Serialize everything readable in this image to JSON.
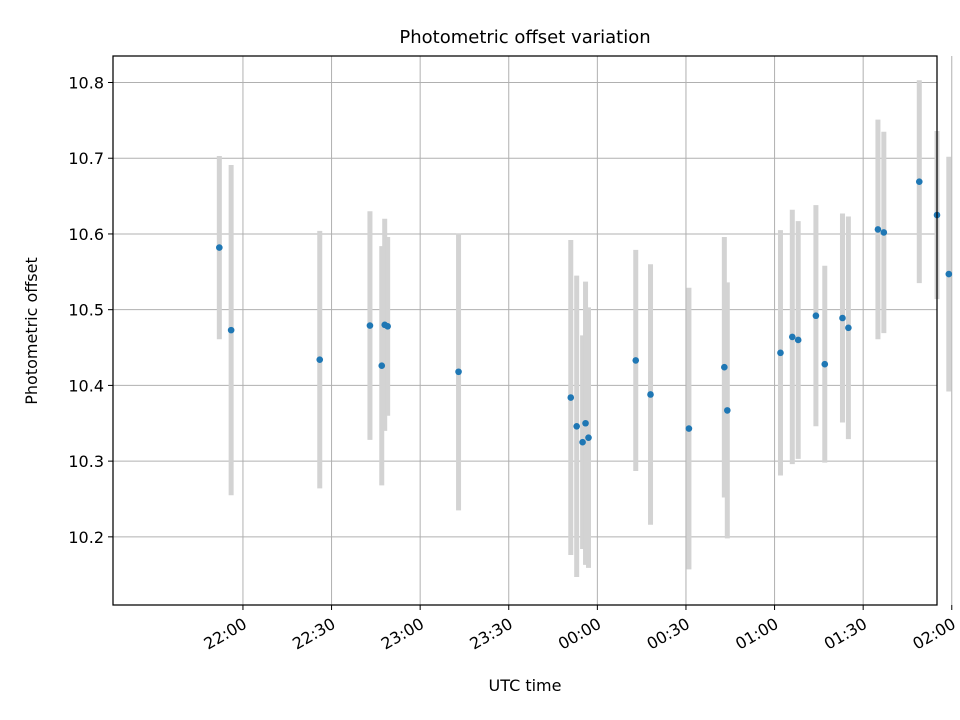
{
  "chart_data": {
    "type": "scatter",
    "title": "Photometric offset variation",
    "xlabel": "UTC time",
    "ylabel": "Photometric offset",
    "x_ticks": [
      "22:00",
      "22:30",
      "23:00",
      "23:30",
      "00:00",
      "00:30",
      "01:00",
      "01:30",
      "02:00"
    ],
    "y_ticks": [
      "10.2",
      "10.3",
      "10.4",
      "10.5",
      "10.6",
      "10.7",
      "10.8"
    ],
    "xlim_minutes": [
      1276,
      1555
    ],
    "ylim": [
      10.11,
      10.835
    ],
    "grid": true,
    "colors": {
      "point": "#1f77b4",
      "errorbar": "#d3d3d3",
      "grid": "#b0b0b0"
    },
    "points": [
      {
        "t": "21:52",
        "m": 1312,
        "y": 10.582,
        "err": 0.121
      },
      {
        "t": "21:56",
        "m": 1316,
        "y": 10.473,
        "err": 0.218
      },
      {
        "t": "22:26",
        "m": 1346,
        "y": 10.434,
        "err": 0.17
      },
      {
        "t": "22:43",
        "m": 1363,
        "y": 10.479,
        "err": 0.151
      },
      {
        "t": "22:47",
        "m": 1367,
        "y": 10.426,
        "err": 0.158
      },
      {
        "t": "22:48",
        "m": 1368,
        "y": 10.48,
        "err": 0.14
      },
      {
        "t": "22:49",
        "m": 1369,
        "y": 10.478,
        "err": 0.118
      },
      {
        "t": "23:13",
        "m": 1393,
        "y": 10.418,
        "err": 0.183
      },
      {
        "t": "23:51",
        "m": 1431,
        "y": 10.384,
        "err": 0.208
      },
      {
        "t": "23:53",
        "m": 1433,
        "y": 10.346,
        "err": 0.199
      },
      {
        "t": "23:55",
        "m": 1435,
        "y": 10.325,
        "err": 0.141
      },
      {
        "t": "23:56",
        "m": 1436,
        "y": 10.35,
        "err": 0.187
      },
      {
        "t": "23:57",
        "m": 1437,
        "y": 10.331,
        "err": 0.172
      },
      {
        "t": "00:13",
        "m": 1453,
        "y": 10.433,
        "err": 0.146
      },
      {
        "t": "00:18",
        "m": 1458,
        "y": 10.388,
        "err": 0.172
      },
      {
        "t": "00:31",
        "m": 1471,
        "y": 10.343,
        "err": 0.186
      },
      {
        "t": "00:43",
        "m": 1483,
        "y": 10.424,
        "err": 0.172
      },
      {
        "t": "00:44",
        "m": 1484,
        "y": 10.367,
        "err": 0.169
      },
      {
        "t": "01:02",
        "m": 1502,
        "y": 10.443,
        "err": 0.162
      },
      {
        "t": "01:06",
        "m": 1506,
        "y": 10.464,
        "err": 0.168
      },
      {
        "t": "01:08",
        "m": 1508,
        "y": 10.46,
        "err": 0.157
      },
      {
        "t": "01:14",
        "m": 1514,
        "y": 10.492,
        "err": 0.146
      },
      {
        "t": "01:17",
        "m": 1517,
        "y": 10.428,
        "err": 0.13
      },
      {
        "t": "01:23",
        "m": 1523,
        "y": 10.489,
        "err": 0.138
      },
      {
        "t": "01:25",
        "m": 1525,
        "y": 10.476,
        "err": 0.147
      },
      {
        "t": "01:35",
        "m": 1535,
        "y": 10.606,
        "err": 0.145
      },
      {
        "t": "01:37",
        "m": 1537,
        "y": 10.602,
        "err": 0.133
      },
      {
        "t": "01:49",
        "m": 1549,
        "y": 10.669,
        "err": 0.134
      },
      {
        "t": "01:55",
        "m": 1555,
        "y": 10.625,
        "err": 0.111
      },
      {
        "t": "01:59",
        "m": 1559,
        "y": 10.547,
        "err": 0.155
      }
    ]
  }
}
